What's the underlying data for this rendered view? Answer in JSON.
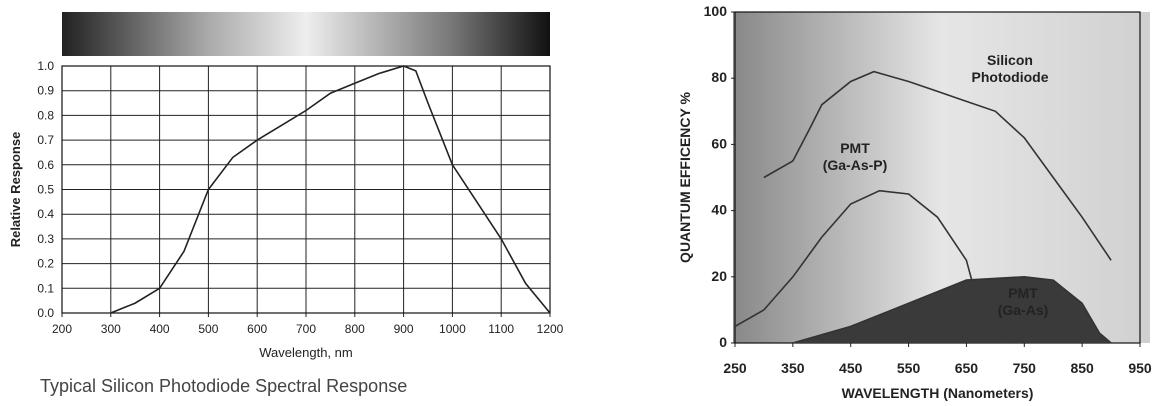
{
  "chart_data": [
    {
      "type": "line",
      "title": "Typical Silicon Photodiode Spectral Response",
      "xlabel": "Wavelength, nm",
      "ylabel": "Relative Response",
      "xlim": [
        200,
        1200
      ],
      "xticks": [
        200,
        300,
        400,
        500,
        600,
        700,
        800,
        900,
        1000,
        1100,
        1200
      ],
      "ylim": [
        0,
        1
      ],
      "yticks": [
        {
          "value": 0,
          "label": "0.0"
        },
        0.1,
        0.2,
        0.3,
        0.4,
        0.5,
        0.6,
        0.7,
        0.8,
        0.9,
        {
          "value": 1,
          "label": "1.0"
        }
      ],
      "grid": true,
      "series": [
        {
          "color": "#222222",
          "x": [
            300,
            350,
            400,
            450,
            500,
            550,
            600,
            650,
            700,
            750,
            800,
            850,
            900,
            925,
            950,
            1000,
            1050,
            1100,
            1150,
            1200
          ],
          "values": [
            0,
            0.04,
            0.1,
            0.25,
            0.5,
            0.63,
            0.7,
            0.76,
            0.82,
            0.89,
            0.93,
            0.97,
            1.0,
            0.98,
            0.85,
            0.6,
            0.45,
            0.3,
            0.12,
            0
          ]
        }
      ]
    },
    {
      "type": "line",
      "xlabel": "WAVELENGTH (Nanometers)",
      "ylabel": "QUANTUM EFFICENCY %",
      "xlim": [
        250,
        950
      ],
      "xticks": [
        250,
        350,
        450,
        550,
        650,
        750,
        850,
        950
      ],
      "ylim": [
        0,
        100
      ],
      "yticks": [
        0,
        20,
        40,
        60,
        80,
        100
      ],
      "grid": false,
      "series": [
        {
          "label_lines": [
            "Silicon",
            "Photodiode"
          ],
          "color": "#333333",
          "x": [
            300,
            350,
            380,
            400,
            450,
            490,
            550,
            600,
            650,
            700,
            750,
            800,
            850,
            900
          ],
          "values": [
            50,
            55,
            65,
            72,
            79,
            82,
            79,
            76,
            73,
            70,
            62,
            50,
            38,
            25
          ]
        },
        {
          "label_lines": [
            "PMT",
            "(Ga-As-P)"
          ],
          "color": "#333333",
          "x": [
            250,
            300,
            350,
            400,
            450,
            500,
            550,
            600,
            650,
            670,
            700,
            720
          ],
          "values": [
            5,
            10,
            20,
            32,
            42,
            46,
            45,
            38,
            25,
            12,
            3,
            0
          ]
        },
        {
          "label_lines": [
            "PMT",
            "(Ga-As)"
          ],
          "color": "#333333",
          "fill": "#3a3a3a",
          "x": [
            350,
            450,
            550,
            650,
            750,
            800,
            850,
            880,
            900
          ],
          "values": [
            0,
            5,
            12,
            19,
            20,
            19,
            12,
            3,
            0
          ]
        }
      ]
    }
  ]
}
